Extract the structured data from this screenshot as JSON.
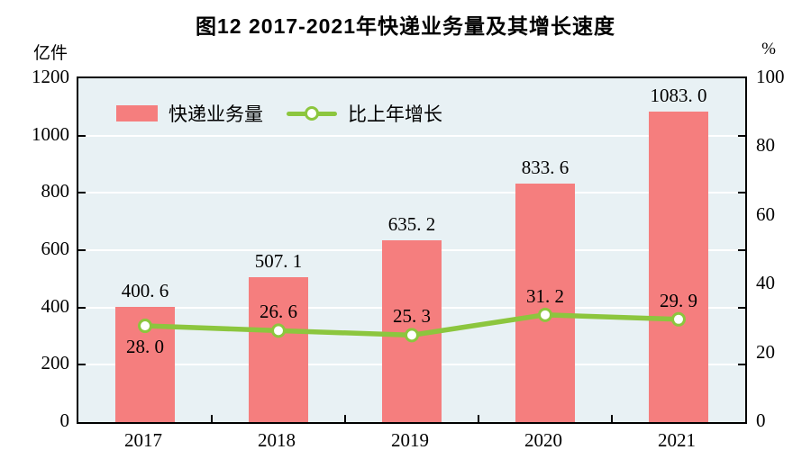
{
  "title": "图12  2017-2021年快递业务量及其增长速度",
  "left_axis_unit": "亿件",
  "right_axis_unit": "%",
  "legend": [
    {
      "label": "快递业务量",
      "type": "bar",
      "color": "#f57e7e"
    },
    {
      "label": "比上年增长",
      "type": "line",
      "color": "#8cc63e"
    }
  ],
  "colors": {
    "bar_fill": "#f57e7e",
    "line_stroke": "#8cc63e",
    "marker_fill": "#ffffff",
    "plot_background": "#e8f1f4",
    "gridline": "#ffffff",
    "frame": "#000000",
    "text": "#000000"
  },
  "chart_data": {
    "type": "bar",
    "subtype": "bar+line combo, dual axis",
    "title": "图12  2017-2021年快递业务量及其增长速度",
    "categories": [
      "2017",
      "2018",
      "2019",
      "2020",
      "2021"
    ],
    "series": [
      {
        "name": "快递业务量",
        "type": "bar",
        "axis": "left",
        "values": [
          400.6,
          507.1,
          635.2,
          833.6,
          1083.0
        ],
        "labels": [
          "400. 6",
          "507. 1",
          "635. 2",
          "833. 6",
          "1083. 0"
        ]
      },
      {
        "name": "比上年增长",
        "type": "line",
        "axis": "right",
        "values": [
          28.0,
          26.6,
          25.3,
          31.2,
          29.9
        ],
        "labels": [
          "28. 0",
          "26. 6",
          "25. 3",
          "31. 2",
          "29. 9"
        ],
        "label_side": [
          "below",
          "above",
          "above",
          "above",
          "above"
        ]
      }
    ],
    "left_axis": {
      "unit": "亿件",
      "min": 0,
      "max": 1200,
      "ticks": [
        0,
        200,
        400,
        600,
        800,
        1000,
        1200
      ]
    },
    "right_axis": {
      "unit": "%",
      "min": 0,
      "max": 100,
      "ticks": [
        0,
        20,
        40,
        60,
        80,
        100
      ]
    },
    "grid": "horizontal white gridlines at left-axis ticks",
    "legend_position": "top-left inside plot"
  }
}
